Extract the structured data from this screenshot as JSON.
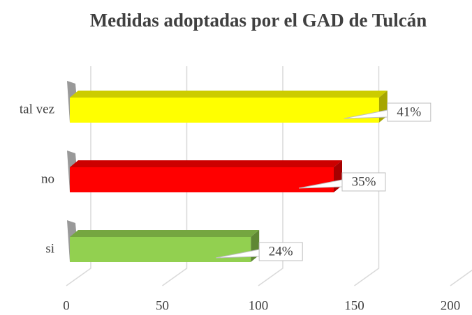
{
  "chart_data": {
    "type": "bar",
    "orientation": "horizontal",
    "title": "Medidas adoptadas por el GAD de Tulcán",
    "categories": [
      "tal vez",
      "no",
      "si"
    ],
    "values": [
      164,
      140,
      96
    ],
    "value_labels": [
      "41%",
      "35%",
      "24%"
    ],
    "colors": [
      "#ffff00",
      "#ff0000",
      "#92d050"
    ],
    "xlim": [
      0,
      200
    ],
    "xticks": [
      0,
      50,
      100,
      150,
      200
    ],
    "grid": true
  }
}
